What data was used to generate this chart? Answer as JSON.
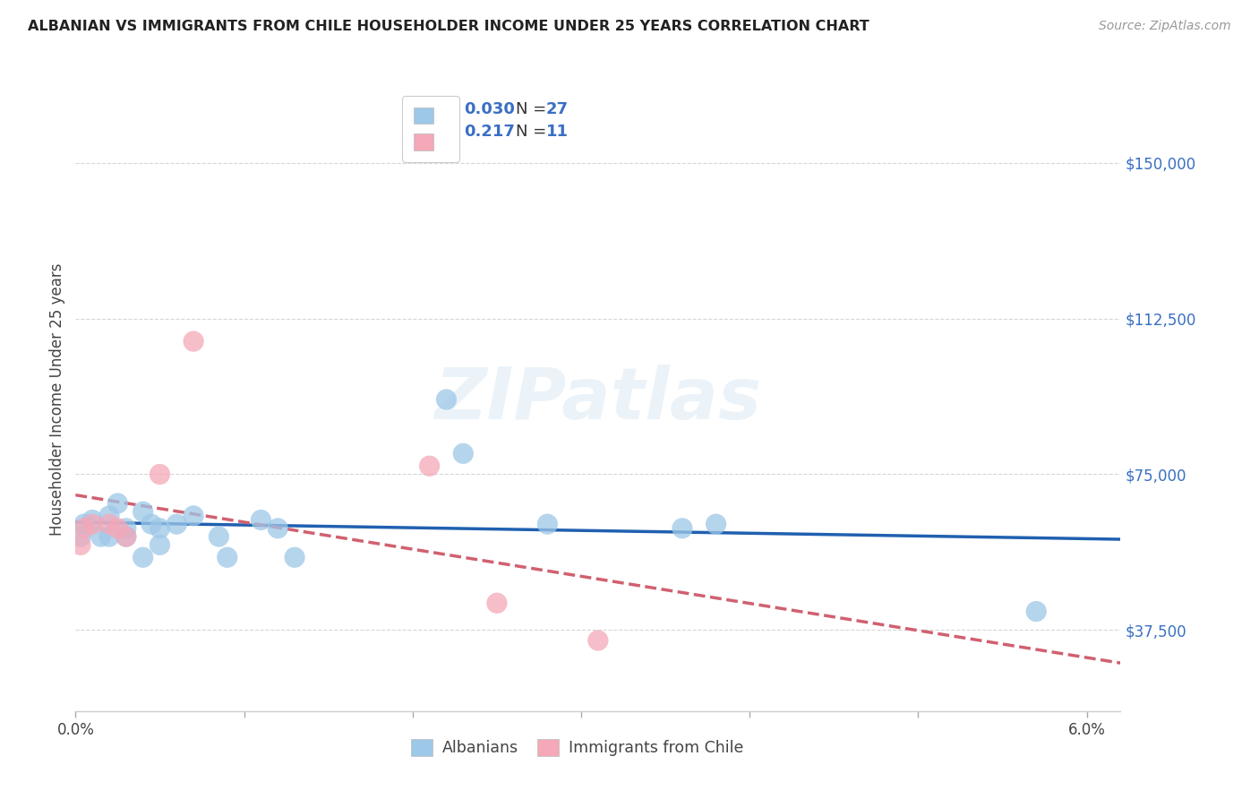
{
  "title": "ALBANIAN VS IMMIGRANTS FROM CHILE HOUSEHOLDER INCOME UNDER 25 YEARS CORRELATION CHART",
  "source": "Source: ZipAtlas.com",
  "ylabel": "Householder Income Under 25 years",
  "xlim": [
    0.0,
    0.062
  ],
  "ylim": [
    18000,
    168000
  ],
  "ytick_vals": [
    37500,
    75000,
    112500,
    150000
  ],
  "ytick_labels": [
    "$37,500",
    "$75,000",
    "$112,500",
    "$150,000"
  ],
  "xtick_vals": [
    0.0,
    0.01,
    0.02,
    0.03,
    0.04,
    0.05,
    0.06
  ],
  "xtick_labels": [
    "0.0%",
    "",
    "",
    "",
    "",
    "",
    "6.0%"
  ],
  "albanian_R": "0.030",
  "albanian_N": "27",
  "chile_R": "0.217",
  "chile_N": "11",
  "albanian_color": "#9dc8e8",
  "chile_color": "#f4a8b8",
  "albanian_line_color": "#2060b0",
  "chile_line_color": "#d06070",
  "bg_color": "#ffffff",
  "grid_color": "#cccccc",
  "albanian_x": [
    0.0003,
    0.0005,
    0.001,
    0.0015,
    0.002,
    0.002,
    0.0025,
    0.003,
    0.003,
    0.004,
    0.004,
    0.0045,
    0.005,
    0.005,
    0.006,
    0.007,
    0.0085,
    0.009,
    0.011,
    0.012,
    0.013,
    0.022,
    0.023,
    0.028,
    0.036,
    0.038,
    0.057
  ],
  "albanian_y": [
    60000,
    63000,
    64000,
    60000,
    65000,
    60000,
    68000,
    62000,
    60000,
    55000,
    66000,
    63000,
    62000,
    58000,
    63000,
    65000,
    60000,
    55000,
    64000,
    62000,
    55000,
    93000,
    80000,
    63000,
    62000,
    63000,
    42000
  ],
  "chile_x": [
    0.0003,
    0.0005,
    0.001,
    0.002,
    0.0025,
    0.003,
    0.005,
    0.007,
    0.021,
    0.025,
    0.031
  ],
  "chile_y": [
    58000,
    62000,
    63000,
    63000,
    62000,
    60000,
    75000,
    107000,
    77000,
    44000,
    35000
  ]
}
